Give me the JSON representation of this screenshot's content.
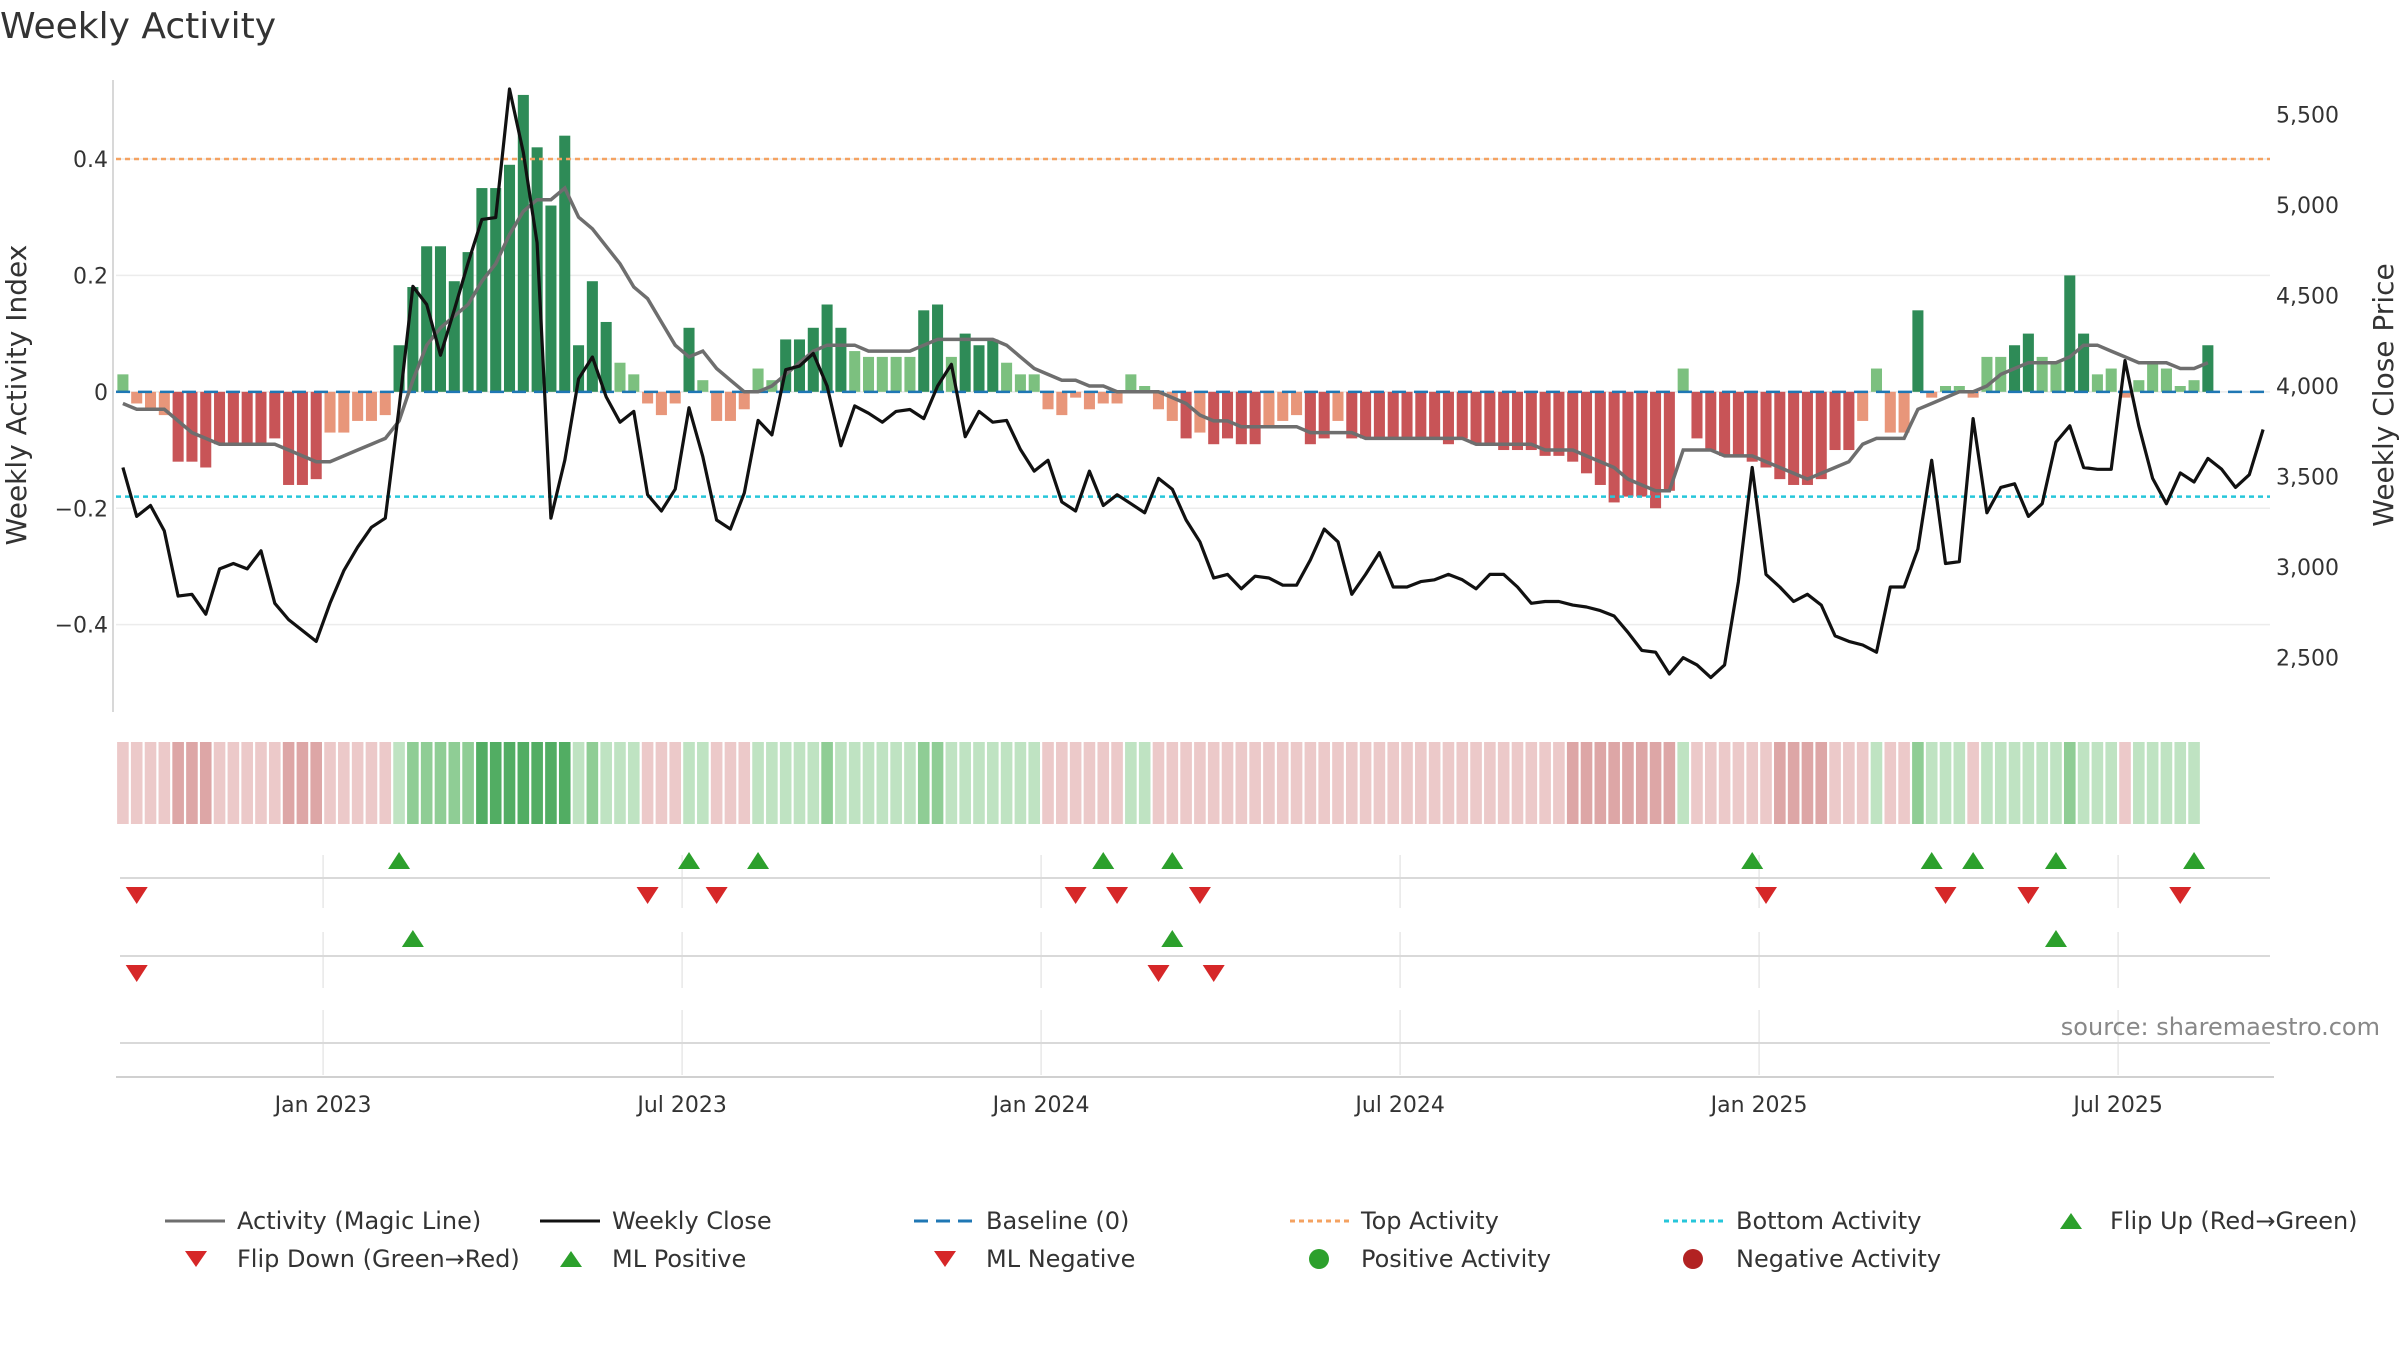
{
  "title": "Weekly Activity",
  "source": "source: sharemaestro.com",
  "colors": {
    "dark_green": "#2e8b57",
    "light_green": "#7cc07f",
    "dark_red": "#c85457",
    "light_red": "#e8967a",
    "magic_line": "#6e6e6e",
    "close_line": "#111111",
    "baseline": "#1f77b4",
    "top": "#f4a261",
    "bottom": "#26c6da",
    "marker_green": "#2ca02c",
    "marker_red": "#d62728"
  },
  "chart_data": {
    "type": "bar",
    "title": "Weekly Activity",
    "ylabel": "Weekly Activity Index",
    "ylabel_right": "Weekly Close Price",
    "ylim": [
      -0.55,
      0.57
    ],
    "ylim_right": [
      2200,
      5800
    ],
    "yticks": [
      -0.4,
      -0.2,
      0,
      0.2,
      0.4
    ],
    "ytick_labels": [
      "−0.4",
      "−0.2",
      "0",
      "0.2",
      "0.4"
    ],
    "yticks_right": [
      2500,
      3000,
      3500,
      4000,
      4500,
      5000,
      5500
    ],
    "ytick_labels_right": [
      "2,500",
      "3,000",
      "3,500",
      "4,000",
      "4,500",
      "5,000",
      "5,500"
    ],
    "xticks": [
      "Jan 2023",
      "Jul 2023",
      "Jan 2024",
      "Jul 2024",
      "Jan 2025",
      "Jul 2025"
    ],
    "xtick_weeks": [
      15,
      41,
      67,
      93,
      119,
      145
    ],
    "top_activity": 0.4,
    "bottom_activity": -0.18,
    "activity_bars": [
      0.03,
      -0.02,
      -0.03,
      -0.04,
      -0.12,
      -0.12,
      -0.13,
      -0.09,
      -0.09,
      -0.09,
      -0.09,
      -0.08,
      -0.16,
      -0.16,
      -0.15,
      -0.07,
      -0.07,
      -0.05,
      -0.05,
      -0.04,
      0.08,
      0.18,
      0.25,
      0.25,
      0.19,
      0.24,
      0.35,
      0.35,
      0.39,
      0.51,
      0.42,
      0.32,
      0.44,
      0.08,
      0.19,
      0.12,
      0.05,
      0.03,
      -0.02,
      -0.04,
      -0.02,
      0.11,
      0.02,
      -0.05,
      -0.05,
      -0.03,
      0.04,
      0.02,
      0.09,
      0.09,
      0.11,
      0.15,
      0.11,
      0.07,
      0.06,
      0.06,
      0.06,
      0.06,
      0.14,
      0.15,
      0.06,
      0.1,
      0.08,
      0.09,
      0.05,
      0.03,
      0.03,
      -0.03,
      -0.04,
      -0.01,
      -0.03,
      -0.02,
      -0.02,
      0.03,
      0.01,
      -0.03,
      -0.05,
      -0.08,
      -0.07,
      -0.09,
      -0.08,
      -0.09,
      -0.09,
      -0.06,
      -0.05,
      -0.04,
      -0.09,
      -0.08,
      -0.05,
      -0.08,
      -0.08,
      -0.08,
      -0.08,
      -0.08,
      -0.08,
      -0.08,
      -0.09,
      -0.08,
      -0.09,
      -0.09,
      -0.1,
      -0.1,
      -0.1,
      -0.11,
      -0.11,
      -0.12,
      -0.14,
      -0.16,
      -0.19,
      -0.18,
      -0.18,
      -0.2,
      -0.17,
      0.04,
      -0.08,
      -0.1,
      -0.11,
      -0.11,
      -0.12,
      -0.13,
      -0.15,
      -0.16,
      -0.16,
      -0.15,
      -0.1,
      -0.1,
      -0.05,
      0.04,
      -0.07,
      -0.07,
      0.14,
      -0.01,
      0.01,
      0.01,
      -0.01,
      0.06,
      0.06,
      0.08,
      0.1,
      0.06,
      0.05,
      0.2,
      0.1,
      0.03,
      0.04,
      -0.01,
      0.02,
      0.05,
      0.04,
      0.01,
      0.02,
      0.08
    ],
    "magic_line": [
      -0.02,
      -0.03,
      -0.03,
      -0.03,
      -0.05,
      -0.07,
      -0.08,
      -0.09,
      -0.09,
      -0.09,
      -0.09,
      -0.09,
      -0.1,
      -0.11,
      -0.12,
      -0.12,
      -0.11,
      -0.1,
      -0.09,
      -0.08,
      -0.05,
      0.02,
      0.08,
      0.11,
      0.13,
      0.15,
      0.19,
      0.22,
      0.27,
      0.31,
      0.33,
      0.33,
      0.35,
      0.3,
      0.28,
      0.25,
      0.22,
      0.18,
      0.16,
      0.12,
      0.08,
      0.06,
      0.07,
      0.04,
      0.02,
      0.0,
      0.0,
      0.01,
      0.03,
      0.05,
      0.07,
      0.08,
      0.08,
      0.08,
      0.07,
      0.07,
      0.07,
      0.07,
      0.08,
      0.09,
      0.09,
      0.09,
      0.09,
      0.09,
      0.08,
      0.06,
      0.04,
      0.03,
      0.02,
      0.02,
      0.01,
      0.01,
      0.0,
      0.0,
      0.0,
      0.0,
      -0.01,
      -0.02,
      -0.04,
      -0.05,
      -0.05,
      -0.06,
      -0.06,
      -0.06,
      -0.06,
      -0.06,
      -0.07,
      -0.07,
      -0.07,
      -0.07,
      -0.08,
      -0.08,
      -0.08,
      -0.08,
      -0.08,
      -0.08,
      -0.08,
      -0.08,
      -0.09,
      -0.09,
      -0.09,
      -0.09,
      -0.09,
      -0.1,
      -0.1,
      -0.1,
      -0.11,
      -0.12,
      -0.13,
      -0.15,
      -0.16,
      -0.17,
      -0.17,
      -0.1,
      -0.1,
      -0.1,
      -0.11,
      -0.11,
      -0.11,
      -0.12,
      -0.13,
      -0.14,
      -0.15,
      -0.14,
      -0.13,
      -0.12,
      -0.09,
      -0.08,
      -0.08,
      -0.08,
      -0.03,
      -0.02,
      -0.01,
      0.0,
      0.0,
      0.01,
      0.03,
      0.04,
      0.05,
      0.05,
      0.05,
      0.06,
      0.08,
      0.08,
      0.07,
      0.06,
      0.05,
      0.05,
      0.05,
      0.04,
      0.04,
      0.05
    ],
    "weekly_close": [
      3550,
      3280,
      3340,
      3200,
      2840,
      2850,
      2740,
      2990,
      3020,
      2990,
      3090,
      2800,
      2710,
      2650,
      2590,
      2800,
      2980,
      3110,
      3220,
      3270,
      3880,
      4550,
      4450,
      4170,
      4420,
      4680,
      4920,
      4930,
      5640,
      5290,
      4790,
      3270,
      3590,
      4040,
      4160,
      3940,
      3800,
      3860,
      3400,
      3310,
      3430,
      3880,
      3610,
      3260,
      3210,
      3410,
      3810,
      3730,
      4090,
      4110,
      4180,
      4000,
      3670,
      3890,
      3850,
      3800,
      3860,
      3870,
      3820,
      4000,
      4120,
      3720,
      3860,
      3800,
      3810,
      3650,
      3530,
      3590,
      3360,
      3310,
      3530,
      3340,
      3400,
      3350,
      3300,
      3490,
      3430,
      3260,
      3140,
      2940,
      2960,
      2880,
      2950,
      2940,
      2900,
      2900,
      3040,
      3210,
      3140,
      2850,
      2960,
      3080,
      2890,
      2890,
      2920,
      2930,
      2960,
      2930,
      2880,
      2960,
      2960,
      2890,
      2800,
      2810,
      2810,
      2790,
      2780,
      2760,
      2730,
      2640,
      2540,
      2530,
      2410,
      2500,
      2460,
      2390,
      2460,
      2920,
      3550,
      2960,
      2890,
      2810,
      2850,
      2790,
      2620,
      2590,
      2570,
      2530,
      2890,
      2890,
      3100,
      3590,
      3020,
      3030,
      3820,
      3300,
      3440,
      3460,
      3280,
      3350,
      3690,
      3780,
      3550,
      3540,
      3540,
      4140,
      3780,
      3490,
      3350,
      3520,
      3470,
      3600,
      3540,
      3440,
      3510,
      3760
    ],
    "heat_strip": [
      -1,
      -1,
      -1,
      -1,
      -2,
      -2,
      -2,
      -1,
      -1,
      -1,
      -1,
      -1,
      -2,
      -2,
      -2,
      -1,
      -1,
      -1,
      -1,
      -1,
      1,
      2,
      2,
      2,
      2,
      2,
      3,
      3,
      3,
      3,
      3,
      3,
      3,
      1,
      2,
      1,
      1,
      1,
      -1,
      -1,
      -1,
      1,
      1,
      -1,
      -1,
      -1,
      1,
      1,
      1,
      1,
      1,
      2,
      1,
      1,
      1,
      1,
      1,
      1,
      2,
      2,
      1,
      1,
      1,
      1,
      1,
      1,
      1,
      -1,
      -1,
      -1,
      -1,
      -1,
      -1,
      1,
      1,
      -1,
      -1,
      -1,
      -1,
      -1,
      -1,
      -1,
      -1,
      -1,
      -1,
      -1,
      -1,
      -1,
      -1,
      -1,
      -1,
      -1,
      -1,
      -1,
      -1,
      -1,
      -1,
      -1,
      -1,
      -1,
      -1,
      -1,
      -1,
      -1,
      -1,
      -2,
      -2,
      -2,
      -2,
      -2,
      -2,
      -2,
      -2,
      1,
      -1,
      -1,
      -1,
      -1,
      -1,
      -1,
      -2,
      -2,
      -2,
      -2,
      -1,
      -1,
      -1,
      1,
      -1,
      -1,
      2,
      1,
      1,
      1,
      -1,
      1,
      1,
      1,
      1,
      1,
      1,
      2,
      1,
      1,
      1,
      -1,
      1,
      1,
      1,
      1,
      1
    ],
    "flip_up": [
      20,
      41,
      46,
      71,
      76,
      118,
      131,
      134,
      140,
      150
    ],
    "flip_down": [
      1,
      38,
      43,
      69,
      72,
      78,
      119,
      132,
      138,
      149
    ],
    "ml_positive": [
      21,
      76,
      140
    ],
    "ml_negative": [
      1,
      75,
      79
    ],
    "weeks": 156
  },
  "legend": {
    "magic_line": "Activity (Magic Line)",
    "weekly_close": "Weekly Close",
    "baseline": "Baseline (0)",
    "top_activity": "Top Activity",
    "bottom_activity": "Bottom Activity",
    "flip_up": "Flip Up (Red→Green)",
    "flip_down": "Flip Down (Green→Red)",
    "ml_positive": "ML Positive",
    "ml_negative": "ML Negative",
    "positive_activity": "Positive Activity",
    "negative_activity": "Negative Activity"
  }
}
